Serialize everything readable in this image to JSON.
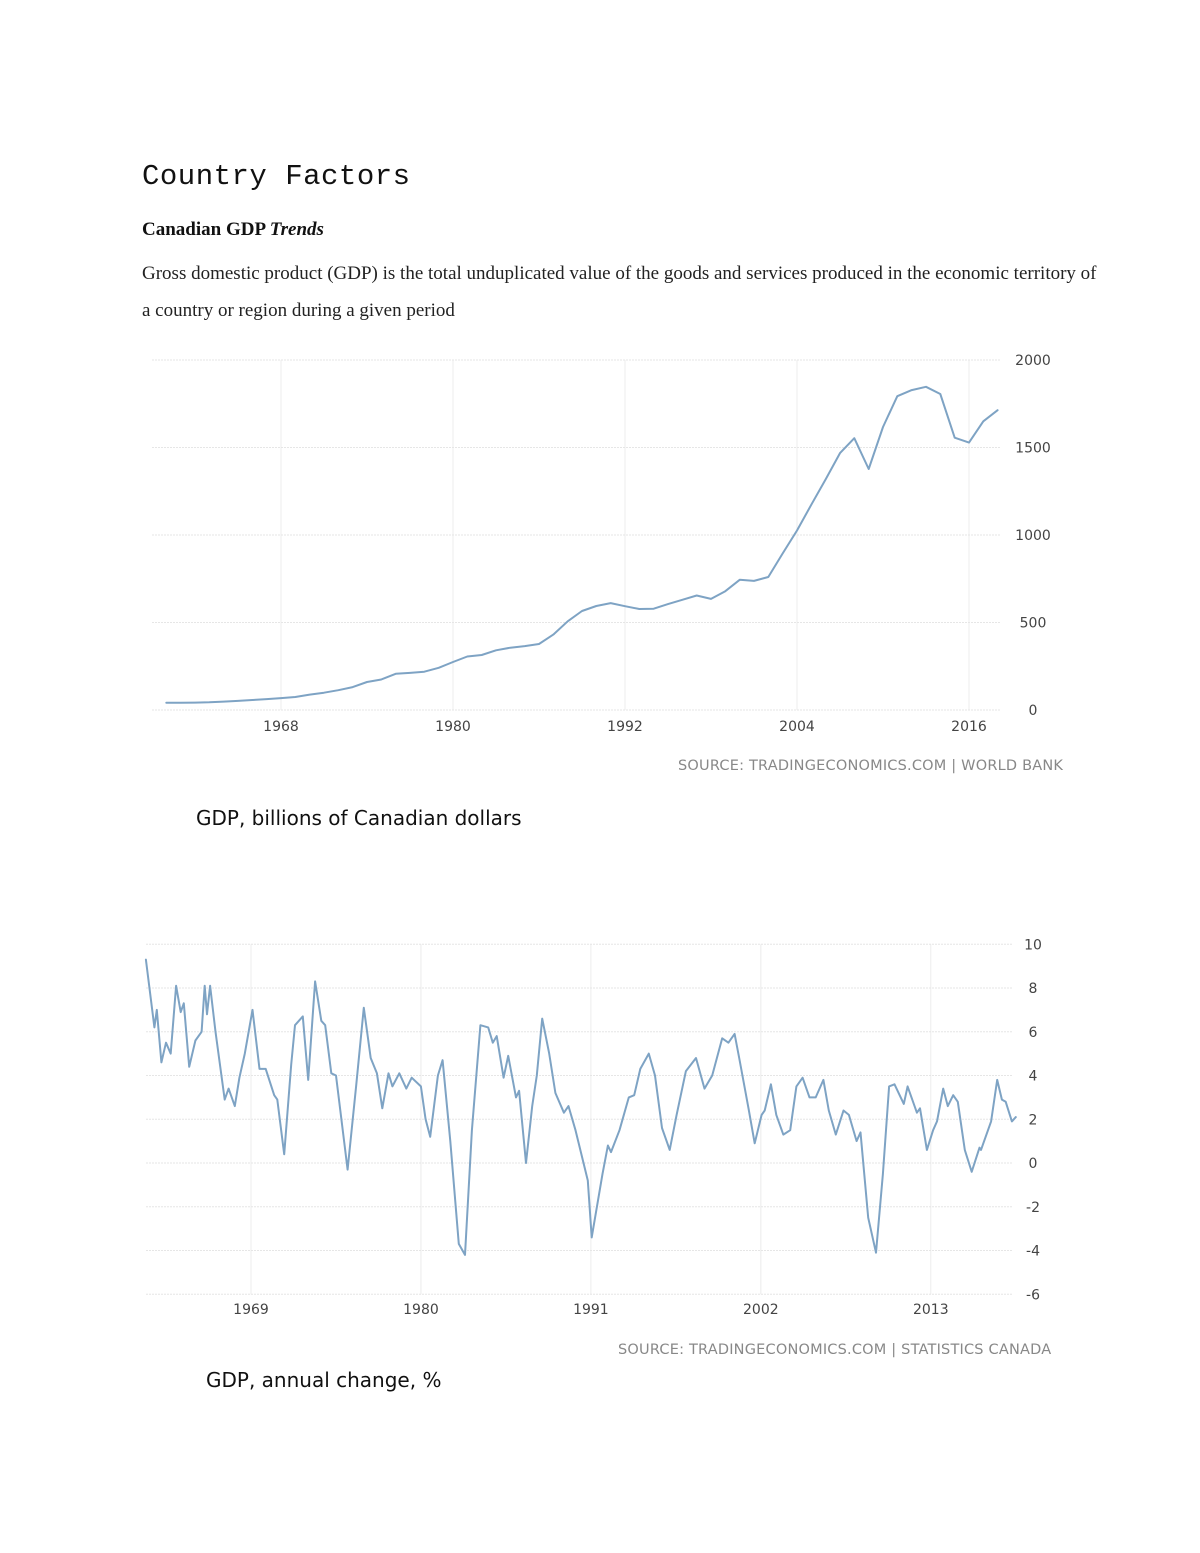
{
  "document": {
    "title": "Country Factors",
    "subtitle_main": "Canadian GDP",
    "subtitle_italic": "Trends",
    "paragraph": "Gross domestic product (GDP) is the total unduplicated value of the goods and services produced in the economic territory of a country or region during a given period"
  },
  "chart_data": [
    {
      "type": "line",
      "caption": "GDP, billions of Canadian dollars",
      "source": "SOURCE: TRADINGECONOMICS.COM | WORLD BANK",
      "line_color": "#7ea3c4",
      "grid": true,
      "xlim": [
        1959,
        2020
      ],
      "ylim": [
        0,
        2000
      ],
      "x_ticks": [
        1968,
        1980,
        1992,
        2004,
        2016
      ],
      "y_ticks": [
        0,
        500,
        1000,
        1500,
        2000
      ],
      "y_axis_side": "right",
      "x": [
        1960,
        1961,
        1962,
        1963,
        1964,
        1965,
        1966,
        1967,
        1968,
        1969,
        1970,
        1971,
        1972,
        1973,
        1974,
        1975,
        1976,
        1977,
        1978,
        1979,
        1980,
        1981,
        1982,
        1983,
        1984,
        1985,
        1986,
        1987,
        1988,
        1989,
        1990,
        1991,
        1992,
        1993,
        1994,
        1995,
        1996,
        1997,
        1998,
        1999,
        2000,
        2001,
        2002,
        2003,
        2004,
        2005,
        2006,
        2007,
        2008,
        2009,
        2010,
        2011,
        2012,
        2013,
        2014,
        2015,
        2016,
        2017,
        2018
      ],
      "values": [
        41,
        41,
        42,
        44,
        48,
        52,
        57,
        62,
        68,
        74,
        88,
        99,
        113,
        131,
        160,
        174,
        207,
        212,
        219,
        241,
        274,
        306,
        314,
        341,
        356,
        365,
        377,
        431,
        507,
        566,
        594,
        611,
        593,
        577,
        579,
        605,
        630,
        654,
        635,
        679,
        744,
        738,
        760,
        895,
        1026,
        1173,
        1319,
        1468,
        1553,
        1377,
        1617,
        1793,
        1828,
        1847,
        1806,
        1556,
        1528,
        1650,
        1713
      ]
    },
    {
      "type": "line",
      "caption": "GDP, annual change, %",
      "source": "SOURCE: TRADINGECONOMICS.COM | STATISTICS CANADA",
      "line_color": "#7ea3c4",
      "grid": true,
      "xlim": [
        1962.2,
        2018.6
      ],
      "ylim": [
        -6,
        10
      ],
      "x_ticks": [
        1969,
        1980,
        1991,
        2002,
        2013
      ],
      "y_ticks": [
        10,
        8,
        6,
        4,
        2,
        0,
        -2,
        -4,
        -6
      ],
      "y_axis_side": "right",
      "x": [
        1962.2,
        1962.75,
        1962.9,
        1963.2,
        1963.5,
        1963.8,
        1964.15,
        1964.45,
        1964.65,
        1965.0,
        1965.4,
        1965.8,
        1966.0,
        1966.15,
        1966.35,
        1966.7,
        1967.3,
        1967.55,
        1967.95,
        1968.25,
        1968.6,
        1969.1,
        1969.55,
        1969.95,
        1970.5,
        1970.7,
        1971.15,
        1971.6,
        1971.85,
        1972.35,
        1972.7,
        1973.15,
        1973.55,
        1973.8,
        1974.2,
        1974.5,
        1975.25,
        1975.8,
        1976.3,
        1976.75,
        1977.15,
        1977.5,
        1977.9,
        1978.15,
        1978.6,
        1979.05,
        1979.4,
        1980.0,
        1980.3,
        1980.6,
        1981.1,
        1981.4,
        1981.9,
        1982.45,
        1982.85,
        1983.3,
        1983.85,
        1984.35,
        1984.65,
        1984.9,
        1985.35,
        1985.65,
        1986.15,
        1986.35,
        1986.8,
        1987.2,
        1987.5,
        1987.85,
        1988.3,
        1988.7,
        1989.25,
        1989.55,
        1990.0,
        1990.8,
        1991.05,
        1991.75,
        1992.1,
        1992.3,
        1992.85,
        1993.45,
        1993.8,
        1994.2,
        1994.75,
        1995.15,
        1995.6,
        1996.1,
        1996.55,
        1997.15,
        1997.8,
        1998.35,
        1998.85,
        1999.5,
        1999.9,
        2000.3,
        2000.6,
        2001.2,
        2001.6,
        2002.05,
        2002.25,
        2002.65,
        2003.0,
        2003.45,
        2003.9,
        2004.3,
        2004.7,
        2005.15,
        2005.55,
        2006.05,
        2006.4,
        2006.85,
        2007.35,
        2007.7,
        2008.2,
        2008.45,
        2008.95,
        2009.45,
        2009.9,
        2010.3,
        2010.65,
        2011.25,
        2011.5,
        2012.1,
        2012.3,
        2012.75,
        2013.15,
        2013.4,
        2013.8,
        2014.1,
        2014.45,
        2014.75,
        2015.2,
        2015.65,
        2016.15,
        2016.25,
        2016.9,
        2017.3,
        2017.6,
        2017.85,
        2018.25,
        2018.5
      ],
      "values": [
        9.3,
        6.2,
        7.0,
        4.6,
        5.5,
        5.0,
        8.1,
        6.9,
        7.3,
        4.4,
        5.6,
        6.0,
        8.1,
        6.8,
        8.1,
        6.0,
        2.9,
        3.4,
        2.6,
        3.9,
        5.0,
        7.0,
        4.3,
        4.3,
        3.1,
        2.9,
        0.4,
        4.5,
        6.3,
        6.7,
        3.8,
        8.3,
        6.5,
        6.3,
        4.1,
        4.0,
        -0.3,
        3.5,
        7.1,
        4.8,
        4.1,
        2.5,
        4.1,
        3.5,
        4.1,
        3.4,
        3.9,
        3.5,
        2.0,
        1.2,
        4.0,
        4.7,
        1.0,
        -3.7,
        -4.2,
        1.5,
        6.3,
        6.2,
        5.5,
        5.8,
        3.9,
        4.9,
        3.0,
        3.3,
        0.0,
        2.6,
        4.0,
        6.6,
        5.0,
        3.2,
        2.3,
        2.6,
        1.5,
        -0.8,
        -3.4,
        -0.5,
        0.8,
        0.5,
        1.5,
        3.0,
        3.1,
        4.3,
        5.0,
        4.0,
        1.6,
        0.6,
        2.2,
        4.2,
        4.8,
        3.4,
        4.0,
        5.7,
        5.5,
        5.9,
        4.8,
        2.5,
        0.9,
        2.2,
        2.4,
        3.6,
        2.2,
        1.3,
        1.5,
        3.5,
        3.9,
        3.0,
        3.0,
        3.8,
        2.4,
        1.3,
        2.4,
        2.2,
        1.0,
        1.4,
        -2.5,
        -4.1,
        -0.5,
        3.5,
        3.6,
        2.7,
        3.5,
        2.3,
        2.5,
        0.6,
        1.5,
        1.9,
        3.4,
        2.6,
        3.1,
        2.8,
        0.6,
        -0.4,
        0.7,
        0.6,
        1.9,
        3.8,
        2.9,
        2.8,
        1.9,
        2.1
      ]
    }
  ]
}
